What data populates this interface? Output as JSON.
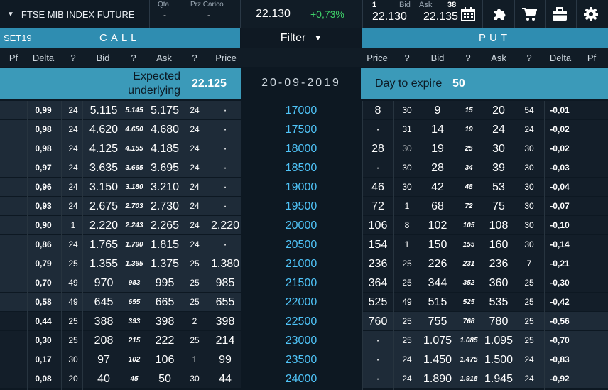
{
  "topbar": {
    "instrument": "FTSE MIB INDEX FUTURE",
    "qta_label": "Qta",
    "qta_value": "-",
    "prz_label": "Prz Carico",
    "prz_value": "-",
    "last": "22.130",
    "change": "+0,73%",
    "bid_qty": "1",
    "bid_label": "Bid",
    "ask_label": "Ask",
    "ask_qty": "38",
    "bid": "22.130",
    "ask": "22.135"
  },
  "header": {
    "set": "SET19",
    "call": "CALL",
    "filter": "Filter",
    "put": "PUT"
  },
  "columns": {
    "call": [
      "Pf",
      "Delta",
      "?",
      "Bid",
      "?",
      "Ask",
      "?",
      "Price"
    ],
    "strike": "",
    "put": [
      "Price",
      "?",
      "Bid",
      "?",
      "Ask",
      "?",
      "Delta",
      "Pf"
    ]
  },
  "info": {
    "expected_label_1": "Expected",
    "expected_label_2": "underlying",
    "expected_value": "22.125",
    "expiry_date": "20-09-2019",
    "days_label": "Day to expire",
    "days_value": "50"
  },
  "colors": {
    "accent": "#2f8db1",
    "strike_text": "#4fc3f7",
    "positive": "#3fd36a",
    "itm_bg": "#1e2b38",
    "otm_bg": "#131e29"
  },
  "rows": [
    {
      "c_delta": "0,99",
      "c_bq": "24",
      "c_bid": "5.115",
      "c_th": "5.145",
      "c_ask": "5.175",
      "c_aq": "24",
      "c_price": "·",
      "strike": "17000",
      "p_price": "8",
      "p_bq": "30",
      "p_bid": "9",
      "p_th": "15",
      "p_ask": "20",
      "p_aq": "54",
      "p_delta": "-0,01",
      "itm": "call"
    },
    {
      "c_delta": "0,98",
      "c_bq": "24",
      "c_bid": "4.620",
      "c_th": "4.650",
      "c_ask": "4.680",
      "c_aq": "24",
      "c_price": "·",
      "strike": "17500",
      "p_price": "·",
      "p_bq": "31",
      "p_bid": "14",
      "p_th": "19",
      "p_ask": "24",
      "p_aq": "24",
      "p_delta": "-0,02",
      "itm": "call"
    },
    {
      "c_delta": "0,98",
      "c_bq": "24",
      "c_bid": "4.125",
      "c_th": "4.155",
      "c_ask": "4.185",
      "c_aq": "24",
      "c_price": "·",
      "strike": "18000",
      "p_price": "28",
      "p_bq": "30",
      "p_bid": "19",
      "p_th": "25",
      "p_ask": "30",
      "p_aq": "30",
      "p_delta": "-0,02",
      "itm": "call"
    },
    {
      "c_delta": "0,97",
      "c_bq": "24",
      "c_bid": "3.635",
      "c_th": "3.665",
      "c_ask": "3.695",
      "c_aq": "24",
      "c_price": "·",
      "strike": "18500",
      "p_price": "·",
      "p_bq": "30",
      "p_bid": "28",
      "p_th": "34",
      "p_ask": "39",
      "p_aq": "30",
      "p_delta": "-0,03",
      "itm": "call"
    },
    {
      "c_delta": "0,96",
      "c_bq": "24",
      "c_bid": "3.150",
      "c_th": "3.180",
      "c_ask": "3.210",
      "c_aq": "24",
      "c_price": "·",
      "strike": "19000",
      "p_price": "46",
      "p_bq": "30",
      "p_bid": "42",
      "p_th": "48",
      "p_ask": "53",
      "p_aq": "30",
      "p_delta": "-0,04",
      "itm": "call"
    },
    {
      "c_delta": "0,93",
      "c_bq": "24",
      "c_bid": "2.675",
      "c_th": "2.703",
      "c_ask": "2.730",
      "c_aq": "24",
      "c_price": "·",
      "strike": "19500",
      "p_price": "72",
      "p_bq": "1",
      "p_bid": "68",
      "p_th": "72",
      "p_ask": "75",
      "p_aq": "30",
      "p_delta": "-0,07",
      "itm": "call"
    },
    {
      "c_delta": "0,90",
      "c_bq": "1",
      "c_bid": "2.220",
      "c_th": "2.243",
      "c_ask": "2.265",
      "c_aq": "24",
      "c_price": "2.220",
      "strike": "20000",
      "p_price": "106",
      "p_bq": "8",
      "p_bid": "102",
      "p_th": "105",
      "p_ask": "108",
      "p_aq": "30",
      "p_delta": "-0,10",
      "itm": "call"
    },
    {
      "c_delta": "0,86",
      "c_bq": "24",
      "c_bid": "1.765",
      "c_th": "1.790",
      "c_ask": "1.815",
      "c_aq": "24",
      "c_price": "·",
      "strike": "20500",
      "p_price": "154",
      "p_bq": "1",
      "p_bid": "150",
      "p_th": "155",
      "p_ask": "160",
      "p_aq": "30",
      "p_delta": "-0,14",
      "itm": "call"
    },
    {
      "c_delta": "0,79",
      "c_bq": "25",
      "c_bid": "1.355",
      "c_th": "1.365",
      "c_ask": "1.375",
      "c_aq": "25",
      "c_price": "1.380",
      "strike": "21000",
      "p_price": "236",
      "p_bq": "25",
      "p_bid": "226",
      "p_th": "231",
      "p_ask": "236",
      "p_aq": "7",
      "p_delta": "-0,21",
      "itm": "call"
    },
    {
      "c_delta": "0,70",
      "c_bq": "49",
      "c_bid": "970",
      "c_th": "983",
      "c_ask": "995",
      "c_aq": "25",
      "c_price": "985",
      "strike": "21500",
      "p_price": "364",
      "p_bq": "25",
      "p_bid": "344",
      "p_th": "352",
      "p_ask": "360",
      "p_aq": "25",
      "p_delta": "-0,30",
      "itm": "call"
    },
    {
      "c_delta": "0,58",
      "c_bq": "49",
      "c_bid": "645",
      "c_th": "655",
      "c_ask": "665",
      "c_aq": "25",
      "c_price": "655",
      "strike": "22000",
      "p_price": "525",
      "p_bq": "49",
      "p_bid": "515",
      "p_th": "525",
      "p_ask": "535",
      "p_aq": "25",
      "p_delta": "-0,42",
      "itm": "call"
    },
    {
      "c_delta": "0,44",
      "c_bq": "25",
      "c_bid": "388",
      "c_th": "393",
      "c_ask": "398",
      "c_aq": "2",
      "c_price": "398",
      "strike": "22500",
      "p_price": "760",
      "p_bq": "25",
      "p_bid": "755",
      "p_th": "768",
      "p_ask": "780",
      "p_aq": "25",
      "p_delta": "-0,56",
      "itm": "put"
    },
    {
      "c_delta": "0,30",
      "c_bq": "25",
      "c_bid": "208",
      "c_th": "215",
      "c_ask": "222",
      "c_aq": "25",
      "c_price": "214",
      "strike": "23000",
      "p_price": "·",
      "p_bq": "25",
      "p_bid": "1.075",
      "p_th": "1.085",
      "p_ask": "1.095",
      "p_aq": "25",
      "p_delta": "-0,70",
      "itm": "put"
    },
    {
      "c_delta": "0,17",
      "c_bq": "30",
      "c_bid": "97",
      "c_th": "102",
      "c_ask": "106",
      "c_aq": "1",
      "c_price": "99",
      "strike": "23500",
      "p_price": "·",
      "p_bq": "24",
      "p_bid": "1.450",
      "p_th": "1.475",
      "p_ask": "1.500",
      "p_aq": "24",
      "p_delta": "-0,83",
      "itm": "put"
    },
    {
      "c_delta": "0,08",
      "c_bq": "20",
      "c_bid": "40",
      "c_th": "45",
      "c_ask": "50",
      "c_aq": "30",
      "c_price": "44",
      "strike": "24000",
      "p_price": "·",
      "p_bq": "24",
      "p_bid": "1.890",
      "p_th": "1.918",
      "p_ask": "1.945",
      "p_aq": "24",
      "p_delta": "-0,92",
      "itm": "put"
    }
  ]
}
